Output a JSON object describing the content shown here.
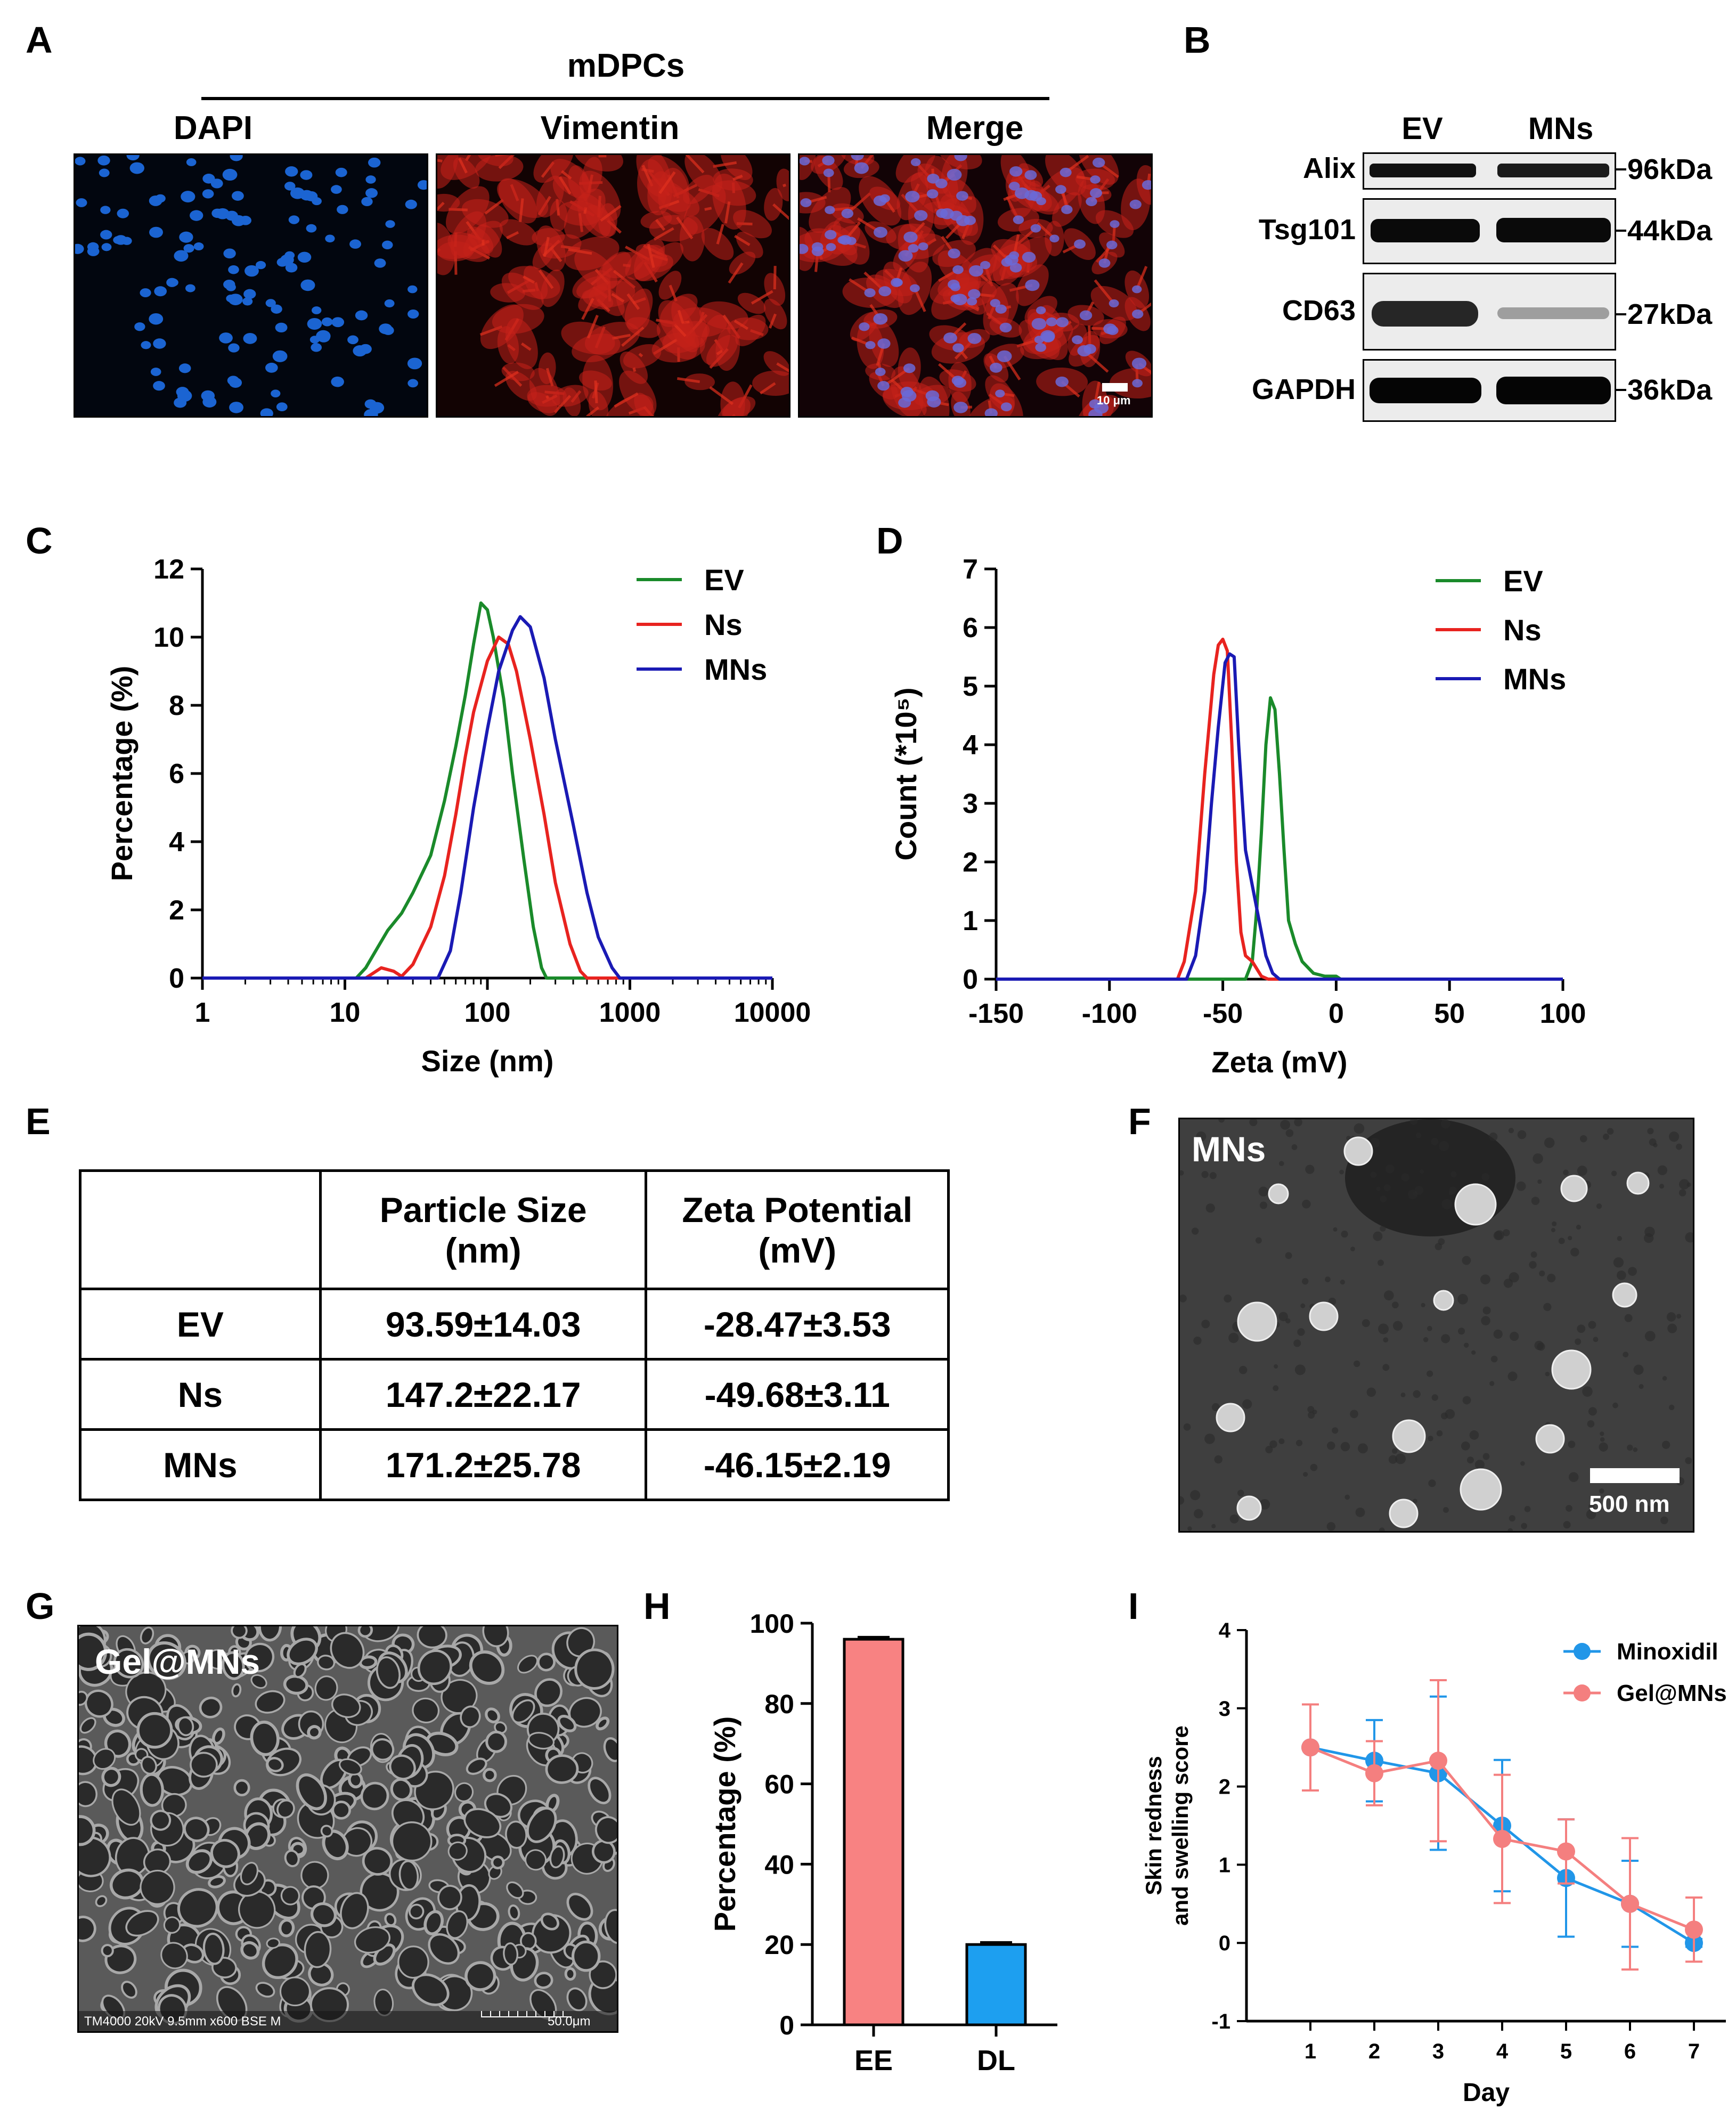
{
  "panels": {
    "a": "A",
    "b": "B",
    "c": "C",
    "d": "D",
    "e": "E",
    "f": "F",
    "g": "G",
    "h": "H",
    "i": "I"
  },
  "panel_a": {
    "group_label": "mDPCs",
    "columns": [
      "DAPI",
      "Vimentin",
      "Merge"
    ],
    "scale_label": "10 μm",
    "colors": {
      "dapi": "#1a5fc4",
      "vimentin": "#d42a18",
      "background": "#0a0406"
    }
  },
  "panel_b": {
    "lanes": [
      "EV",
      "MNs"
    ],
    "rows": [
      {
        "label": "Alix",
        "kda": "96kDa"
      },
      {
        "label": "Tsg101",
        "kda": "44kDa"
      },
      {
        "label": "CD63",
        "kda": "27kDa"
      },
      {
        "label": "GAPDH",
        "kda": "36kDa"
      }
    ]
  },
  "panel_e": {
    "headers": [
      "",
      "Particle Size (nm)",
      "Zeta Potential (mV)"
    ],
    "rows": [
      [
        "EV",
        "93.59±14.03",
        "-28.47±3.53"
      ],
      [
        "Ns",
        "147.2±22.17",
        "-49.68±3.11"
      ],
      [
        "MNs",
        "171.2±25.78",
        "-46.15±2.19"
      ]
    ]
  },
  "panel_f": {
    "label": "MNs",
    "scale_label": "500 nm"
  },
  "panel_g": {
    "label": "Gel@MNs",
    "footer": "TM4000 20kV 9.5mm x600 BSE M",
    "scale_label": "50.0μm"
  },
  "colors": {
    "ev": "#1a8a2a",
    "ns": "#e8231f",
    "mns": "#1a1ab4",
    "ee": "#f88282",
    "dl": "#1d9ff0",
    "minoxidil": "#2196e8",
    "gelmns": "#f47f7f"
  },
  "chart_data": [
    {
      "type": "line",
      "panel": "C",
      "xlabel": "Size (nm)",
      "ylabel": "Percentage (%)",
      "xscale": "log",
      "xlim": [
        1,
        10000
      ],
      "ylim": [
        0,
        12
      ],
      "xticks": [
        "1",
        "10",
        "100",
        "1000",
        "10000"
      ],
      "yticks": [
        "0",
        "2",
        "4",
        "6",
        "8",
        "10",
        "12"
      ],
      "legend": "top-right",
      "series": [
        {
          "name": "EV",
          "color": "#1a8a2a",
          "points": [
            [
              1,
              0
            ],
            [
              12,
              0
            ],
            [
              14,
              0.3
            ],
            [
              17,
              0.9
            ],
            [
              20,
              1.4
            ],
            [
              25,
              1.9
            ],
            [
              30,
              2.5
            ],
            [
              40,
              3.6
            ],
            [
              50,
              5.2
            ],
            [
              60,
              6.8
            ],
            [
              70,
              8.3
            ],
            [
              80,
              9.8
            ],
            [
              90,
              11.0
            ],
            [
              100,
              10.8
            ],
            [
              110,
              10.0
            ],
            [
              130,
              8.2
            ],
            [
              150,
              6.0
            ],
            [
              180,
              3.5
            ],
            [
              210,
              1.5
            ],
            [
              240,
              0.3
            ],
            [
              260,
              0
            ],
            [
              10000,
              0
            ]
          ]
        },
        {
          "name": "Ns",
          "color": "#e8231f",
          "points": [
            [
              1,
              0
            ],
            [
              14,
              0
            ],
            [
              18,
              0.3
            ],
            [
              22,
              0.2
            ],
            [
              25,
              0.05
            ],
            [
              30,
              0.4
            ],
            [
              40,
              1.5
            ],
            [
              50,
              3.0
            ],
            [
              60,
              4.8
            ],
            [
              70,
              6.5
            ],
            [
              80,
              7.8
            ],
            [
              100,
              9.3
            ],
            [
              120,
              10.0
            ],
            [
              140,
              9.8
            ],
            [
              160,
              9.0
            ],
            [
              200,
              7.0
            ],
            [
              250,
              4.8
            ],
            [
              300,
              2.8
            ],
            [
              380,
              1.0
            ],
            [
              450,
              0.2
            ],
            [
              500,
              0
            ],
            [
              10000,
              0
            ]
          ]
        },
        {
          "name": "MNs",
          "color": "#1a1ab4",
          "points": [
            [
              1,
              0
            ],
            [
              45,
              0
            ],
            [
              55,
              0.8
            ],
            [
              65,
              2.5
            ],
            [
              80,
              5.0
            ],
            [
              100,
              7.3
            ],
            [
              120,
              9.0
            ],
            [
              150,
              10.2
            ],
            [
              170,
              10.6
            ],
            [
              200,
              10.3
            ],
            [
              250,
              8.8
            ],
            [
              300,
              7.0
            ],
            [
              400,
              4.5
            ],
            [
              500,
              2.5
            ],
            [
              600,
              1.2
            ],
            [
              750,
              0.3
            ],
            [
              850,
              0
            ],
            [
              10000,
              0
            ]
          ]
        }
      ]
    },
    {
      "type": "line",
      "panel": "D",
      "xlabel": "Zeta (mV)",
      "ylabel": "Count (*10⁵)",
      "xlim": [
        -150,
        100
      ],
      "ylim": [
        0,
        7
      ],
      "xticks": [
        "-150",
        "-100",
        "-50",
        "0",
        "50",
        "100"
      ],
      "yticks": [
        "0",
        "1",
        "2",
        "3",
        "4",
        "5",
        "6",
        "7"
      ],
      "legend": "top-right",
      "series": [
        {
          "name": "EV",
          "color": "#1a8a2a",
          "points": [
            [
              -150,
              0
            ],
            [
              -40,
              0
            ],
            [
              -37,
              0.3
            ],
            [
              -35,
              1.2
            ],
            [
              -33,
              2.5
            ],
            [
              -31,
              4.0
            ],
            [
              -29,
              4.8
            ],
            [
              -27,
              4.6
            ],
            [
              -25,
              3.5
            ],
            [
              -23,
              2.2
            ],
            [
              -21,
              1.0
            ],
            [
              -18,
              0.6
            ],
            [
              -15,
              0.3
            ],
            [
              -10,
              0.1
            ],
            [
              -5,
              0.05
            ],
            [
              0,
              0.05
            ],
            [
              2,
              0
            ],
            [
              100,
              0
            ]
          ]
        },
        {
          "name": "Ns",
          "color": "#e8231f",
          "points": [
            [
              -150,
              0
            ],
            [
              -70,
              0
            ],
            [
              -67,
              0.3
            ],
            [
              -62,
              1.5
            ],
            [
              -58,
              3.5
            ],
            [
              -54,
              5.2
            ],
            [
              -52,
              5.7
            ],
            [
              -50,
              5.8
            ],
            [
              -48,
              5.6
            ],
            [
              -46,
              4.0
            ],
            [
              -44,
              2.0
            ],
            [
              -42,
              0.8
            ],
            [
              -40,
              0.4
            ],
            [
              -37,
              0.3
            ],
            [
              -33,
              0.05
            ],
            [
              -30,
              0
            ],
            [
              100,
              0
            ]
          ]
        },
        {
          "name": "MNs",
          "color": "#1a1ab4",
          "points": [
            [
              -150,
              0
            ],
            [
              -66,
              0
            ],
            [
              -62,
              0.4
            ],
            [
              -58,
              1.5
            ],
            [
              -55,
              3.0
            ],
            [
              -52,
              4.3
            ],
            [
              -49,
              5.4
            ],
            [
              -47,
              5.55
            ],
            [
              -45,
              5.5
            ],
            [
              -43,
              4.0
            ],
            [
              -40,
              2.2
            ],
            [
              -37,
              1.6
            ],
            [
              -34,
              1.0
            ],
            [
              -31,
              0.4
            ],
            [
              -28,
              0.1
            ],
            [
              -25,
              0
            ],
            [
              100,
              0
            ]
          ]
        }
      ]
    },
    {
      "type": "bar",
      "panel": "H",
      "ylabel": "Percentage (%)",
      "categories": [
        "EE",
        "DL"
      ],
      "values": [
        96,
        20
      ],
      "errors": [
        0.5,
        0.5
      ],
      "ylim": [
        0,
        100
      ],
      "yticks": [
        "0",
        "20",
        "40",
        "60",
        "80",
        "100"
      ]
    },
    {
      "type": "line",
      "panel": "I",
      "xlabel": "Day",
      "ylabel": [
        "Skin redness",
        "and swelling score"
      ],
      "x": [
        1,
        2,
        3,
        4,
        5,
        6,
        7
      ],
      "xlim": [
        0,
        7.5
      ],
      "ylim": [
        -1,
        4
      ],
      "yticks": [
        "-1",
        "0",
        "1",
        "2",
        "3",
        "4"
      ],
      "legend": "top-right",
      "series": [
        {
          "name": "Minoxidil",
          "color": "#2196e8",
          "values": [
            2.5,
            2.33,
            2.17,
            1.5,
            0.83,
            0.5,
            0.0
          ],
          "errors": [
            0.55,
            0.52,
            0.98,
            0.84,
            0.75,
            0.55,
            0.05
          ]
        },
        {
          "name": "Gel@MNs",
          "color": "#f47f7f",
          "values": [
            2.5,
            2.17,
            2.33,
            1.33,
            1.17,
            0.5,
            0.17
          ],
          "errors": [
            0.55,
            0.41,
            1.03,
            0.82,
            0.41,
            0.84,
            0.41
          ]
        }
      ]
    }
  ]
}
